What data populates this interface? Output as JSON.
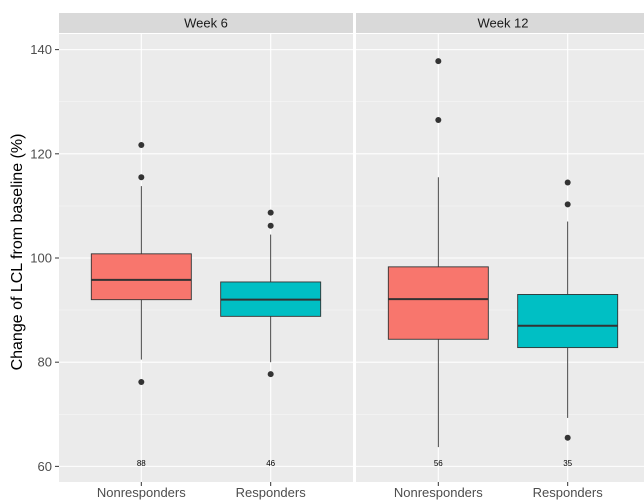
{
  "chart_data": {
    "type": "boxplot",
    "ylabel": "Change of LCL from baseline (%)",
    "xlabel": "",
    "ylim": [
      57,
      143
    ],
    "yticks": [
      60,
      80,
      100,
      120,
      140
    ],
    "categories": [
      "Nonresponders",
      "Responders"
    ],
    "fill_colors": {
      "Nonresponders": "#F8766D",
      "Responders": "#00BFC4"
    },
    "grid": true,
    "panels": [
      {
        "title": "Week 6",
        "boxes": [
          {
            "category": "Nonresponders",
            "q1": 92.0,
            "median": 95.8,
            "q3": 100.8,
            "whisker_low": 80.5,
            "whisker_high": 113.8,
            "outliers": [
              121.7,
              115.5,
              76.2
            ],
            "n_label": "88"
          },
          {
            "category": "Responders",
            "q1": 88.8,
            "median": 92.0,
            "q3": 95.4,
            "whisker_low": 80.0,
            "whisker_high": 104.5,
            "outliers": [
              108.7,
              106.2,
              77.7
            ],
            "n_label": "46"
          }
        ]
      },
      {
        "title": "Week 12",
        "boxes": [
          {
            "category": "Nonresponders",
            "q1": 84.4,
            "median": 92.1,
            "q3": 98.3,
            "whisker_low": 63.7,
            "whisker_high": 115.5,
            "outliers": [
              137.8,
              126.5
            ],
            "n_label": "56"
          },
          {
            "category": "Responders",
            "q1": 82.8,
            "median": 87.0,
            "q3": 93.0,
            "whisker_low": 69.3,
            "whisker_high": 107.0,
            "outliers": [
              114.5,
              110.3,
              65.5
            ],
            "n_label": "35"
          }
        ]
      }
    ]
  }
}
